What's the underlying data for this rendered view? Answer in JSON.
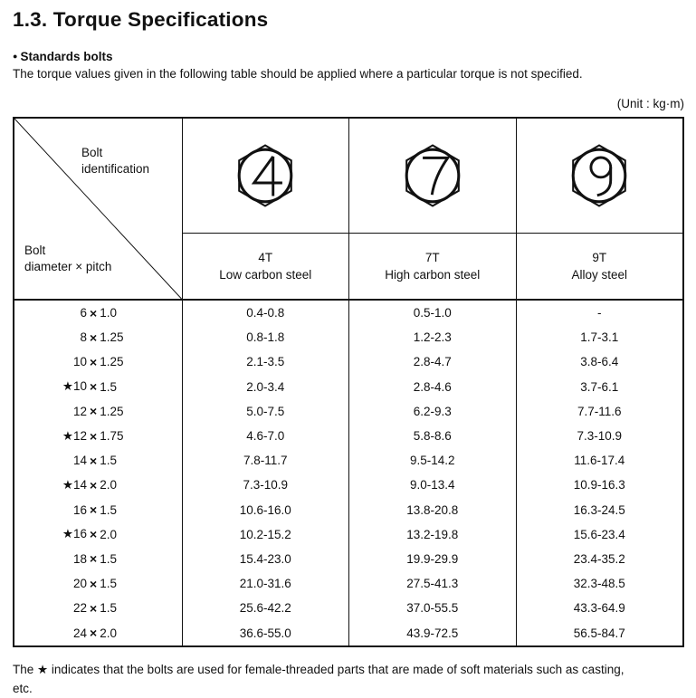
{
  "page": {
    "title": "1.3. Torque Specifications",
    "bullet": "●",
    "section_heading": "Standards bolts",
    "intro": "The torque values given in the following table should be applied where a particular torque is not specified.",
    "unit_note": "(Unit : kg·m)",
    "footnote_line1": "The ★ indicates that the bolts are used for female-threaded parts that are made of soft materials such as casting,",
    "footnote_line2": "etc."
  },
  "table": {
    "corner": {
      "top_line1": "Bolt",
      "top_line2": "identification",
      "bottom_line1": "Bolt",
      "bottom_line2": "diameter × pitch"
    },
    "multiply_sign": "×",
    "columns": [
      {
        "mark": "4",
        "grade": "4T",
        "material": "Low carbon steel"
      },
      {
        "mark": "7",
        "grade": "7T",
        "material": "High carbon steel"
      },
      {
        "mark": "9",
        "grade": "9T",
        "material": "Alloy steel"
      }
    ],
    "rows": [
      {
        "star": "",
        "diameter": "6",
        "pitch": "1.0",
        "values": [
          "0.4-0.8",
          "0.5-1.0",
          "-"
        ]
      },
      {
        "star": "",
        "diameter": "8",
        "pitch": "1.25",
        "values": [
          "0.8-1.8",
          "1.2-2.3",
          "1.7-3.1"
        ]
      },
      {
        "star": "",
        "diameter": "10",
        "pitch": "1.25",
        "values": [
          "2.1-3.5",
          "2.8-4.7",
          "3.8-6.4"
        ]
      },
      {
        "star": "★",
        "diameter": "10",
        "pitch": "1.5",
        "values": [
          "2.0-3.4",
          "2.8-4.6",
          "3.7-6.1"
        ]
      },
      {
        "star": "",
        "diameter": "12",
        "pitch": "1.25",
        "values": [
          "5.0-7.5",
          "6.2-9.3",
          "7.7-11.6"
        ]
      },
      {
        "star": "★",
        "diameter": "12",
        "pitch": "1.75",
        "values": [
          "4.6-7.0",
          "5.8-8.6",
          "7.3-10.9"
        ]
      },
      {
        "star": "",
        "diameter": "14",
        "pitch": "1.5",
        "values": [
          "7.8-11.7",
          "9.5-14.2",
          "11.6-17.4"
        ]
      },
      {
        "star": "★",
        "diameter": "14",
        "pitch": "2.0",
        "values": [
          "7.3-10.9",
          "9.0-13.4",
          "10.9-16.3"
        ]
      },
      {
        "star": "",
        "diameter": "16",
        "pitch": "1.5",
        "values": [
          "10.6-16.0",
          "13.8-20.8",
          "16.3-24.5"
        ]
      },
      {
        "star": "★",
        "diameter": "16",
        "pitch": "2.0",
        "values": [
          "10.2-15.2",
          "13.2-19.8",
          "15.6-23.4"
        ]
      },
      {
        "star": "",
        "diameter": "18",
        "pitch": "1.5",
        "values": [
          "15.4-23.0",
          "19.9-29.9",
          "23.4-35.2"
        ]
      },
      {
        "star": "",
        "diameter": "20",
        "pitch": "1.5",
        "values": [
          "21.0-31.6",
          "27.5-41.3",
          "32.3-48.5"
        ]
      },
      {
        "star": "",
        "diameter": "22",
        "pitch": "1.5",
        "values": [
          "25.6-42.2",
          "37.0-55.5",
          "43.3-64.9"
        ]
      },
      {
        "star": "",
        "diameter": "24",
        "pitch": "2.0",
        "values": [
          "36.6-55.0",
          "43.9-72.5",
          "56.5-84.7"
        ]
      }
    ]
  }
}
